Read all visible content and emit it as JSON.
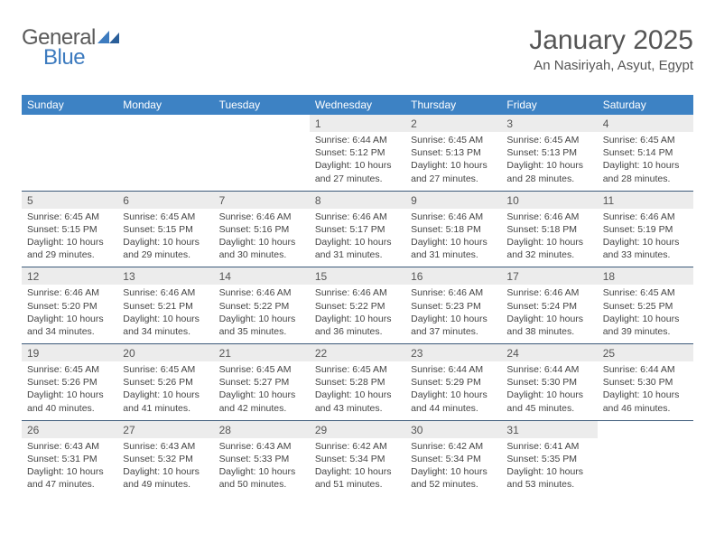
{
  "brand": {
    "word1": "General",
    "word2": "Blue"
  },
  "colors": {
    "header_bg": "#3d82c4",
    "header_text": "#ffffff",
    "daynum_bg": "#ececec",
    "divider": "#3d5a7a",
    "text": "#444444",
    "brand_gray": "#5a5a5a",
    "brand_blue": "#3d7bbf"
  },
  "title": "January 2025",
  "location": "An Nasiriyah, Asyut, Egypt",
  "weekdays": [
    "Sunday",
    "Monday",
    "Tuesday",
    "Wednesday",
    "Thursday",
    "Friday",
    "Saturday"
  ],
  "weeks": [
    [
      null,
      null,
      null,
      {
        "n": "1",
        "sr": "6:44 AM",
        "ss": "5:12 PM",
        "dl": "10 hours and 27 minutes."
      },
      {
        "n": "2",
        "sr": "6:45 AM",
        "ss": "5:13 PM",
        "dl": "10 hours and 27 minutes."
      },
      {
        "n": "3",
        "sr": "6:45 AM",
        "ss": "5:13 PM",
        "dl": "10 hours and 28 minutes."
      },
      {
        "n": "4",
        "sr": "6:45 AM",
        "ss": "5:14 PM",
        "dl": "10 hours and 28 minutes."
      }
    ],
    [
      {
        "n": "5",
        "sr": "6:45 AM",
        "ss": "5:15 PM",
        "dl": "10 hours and 29 minutes."
      },
      {
        "n": "6",
        "sr": "6:45 AM",
        "ss": "5:15 PM",
        "dl": "10 hours and 29 minutes."
      },
      {
        "n": "7",
        "sr": "6:46 AM",
        "ss": "5:16 PM",
        "dl": "10 hours and 30 minutes."
      },
      {
        "n": "8",
        "sr": "6:46 AM",
        "ss": "5:17 PM",
        "dl": "10 hours and 31 minutes."
      },
      {
        "n": "9",
        "sr": "6:46 AM",
        "ss": "5:18 PM",
        "dl": "10 hours and 31 minutes."
      },
      {
        "n": "10",
        "sr": "6:46 AM",
        "ss": "5:18 PM",
        "dl": "10 hours and 32 minutes."
      },
      {
        "n": "11",
        "sr": "6:46 AM",
        "ss": "5:19 PM",
        "dl": "10 hours and 33 minutes."
      }
    ],
    [
      {
        "n": "12",
        "sr": "6:46 AM",
        "ss": "5:20 PM",
        "dl": "10 hours and 34 minutes."
      },
      {
        "n": "13",
        "sr": "6:46 AM",
        "ss": "5:21 PM",
        "dl": "10 hours and 34 minutes."
      },
      {
        "n": "14",
        "sr": "6:46 AM",
        "ss": "5:22 PM",
        "dl": "10 hours and 35 minutes."
      },
      {
        "n": "15",
        "sr": "6:46 AM",
        "ss": "5:22 PM",
        "dl": "10 hours and 36 minutes."
      },
      {
        "n": "16",
        "sr": "6:46 AM",
        "ss": "5:23 PM",
        "dl": "10 hours and 37 minutes."
      },
      {
        "n": "17",
        "sr": "6:46 AM",
        "ss": "5:24 PM",
        "dl": "10 hours and 38 minutes."
      },
      {
        "n": "18",
        "sr": "6:45 AM",
        "ss": "5:25 PM",
        "dl": "10 hours and 39 minutes."
      }
    ],
    [
      {
        "n": "19",
        "sr": "6:45 AM",
        "ss": "5:26 PM",
        "dl": "10 hours and 40 minutes."
      },
      {
        "n": "20",
        "sr": "6:45 AM",
        "ss": "5:26 PM",
        "dl": "10 hours and 41 minutes."
      },
      {
        "n": "21",
        "sr": "6:45 AM",
        "ss": "5:27 PM",
        "dl": "10 hours and 42 minutes."
      },
      {
        "n": "22",
        "sr": "6:45 AM",
        "ss": "5:28 PM",
        "dl": "10 hours and 43 minutes."
      },
      {
        "n": "23",
        "sr": "6:44 AM",
        "ss": "5:29 PM",
        "dl": "10 hours and 44 minutes."
      },
      {
        "n": "24",
        "sr": "6:44 AM",
        "ss": "5:30 PM",
        "dl": "10 hours and 45 minutes."
      },
      {
        "n": "25",
        "sr": "6:44 AM",
        "ss": "5:30 PM",
        "dl": "10 hours and 46 minutes."
      }
    ],
    [
      {
        "n": "26",
        "sr": "6:43 AM",
        "ss": "5:31 PM",
        "dl": "10 hours and 47 minutes."
      },
      {
        "n": "27",
        "sr": "6:43 AM",
        "ss": "5:32 PM",
        "dl": "10 hours and 49 minutes."
      },
      {
        "n": "28",
        "sr": "6:43 AM",
        "ss": "5:33 PM",
        "dl": "10 hours and 50 minutes."
      },
      {
        "n": "29",
        "sr": "6:42 AM",
        "ss": "5:34 PM",
        "dl": "10 hours and 51 minutes."
      },
      {
        "n": "30",
        "sr": "6:42 AM",
        "ss": "5:34 PM",
        "dl": "10 hours and 52 minutes."
      },
      {
        "n": "31",
        "sr": "6:41 AM",
        "ss": "5:35 PM",
        "dl": "10 hours and 53 minutes."
      },
      null
    ]
  ],
  "labels": {
    "sunrise": "Sunrise:",
    "sunset": "Sunset:",
    "daylight": "Daylight:"
  }
}
